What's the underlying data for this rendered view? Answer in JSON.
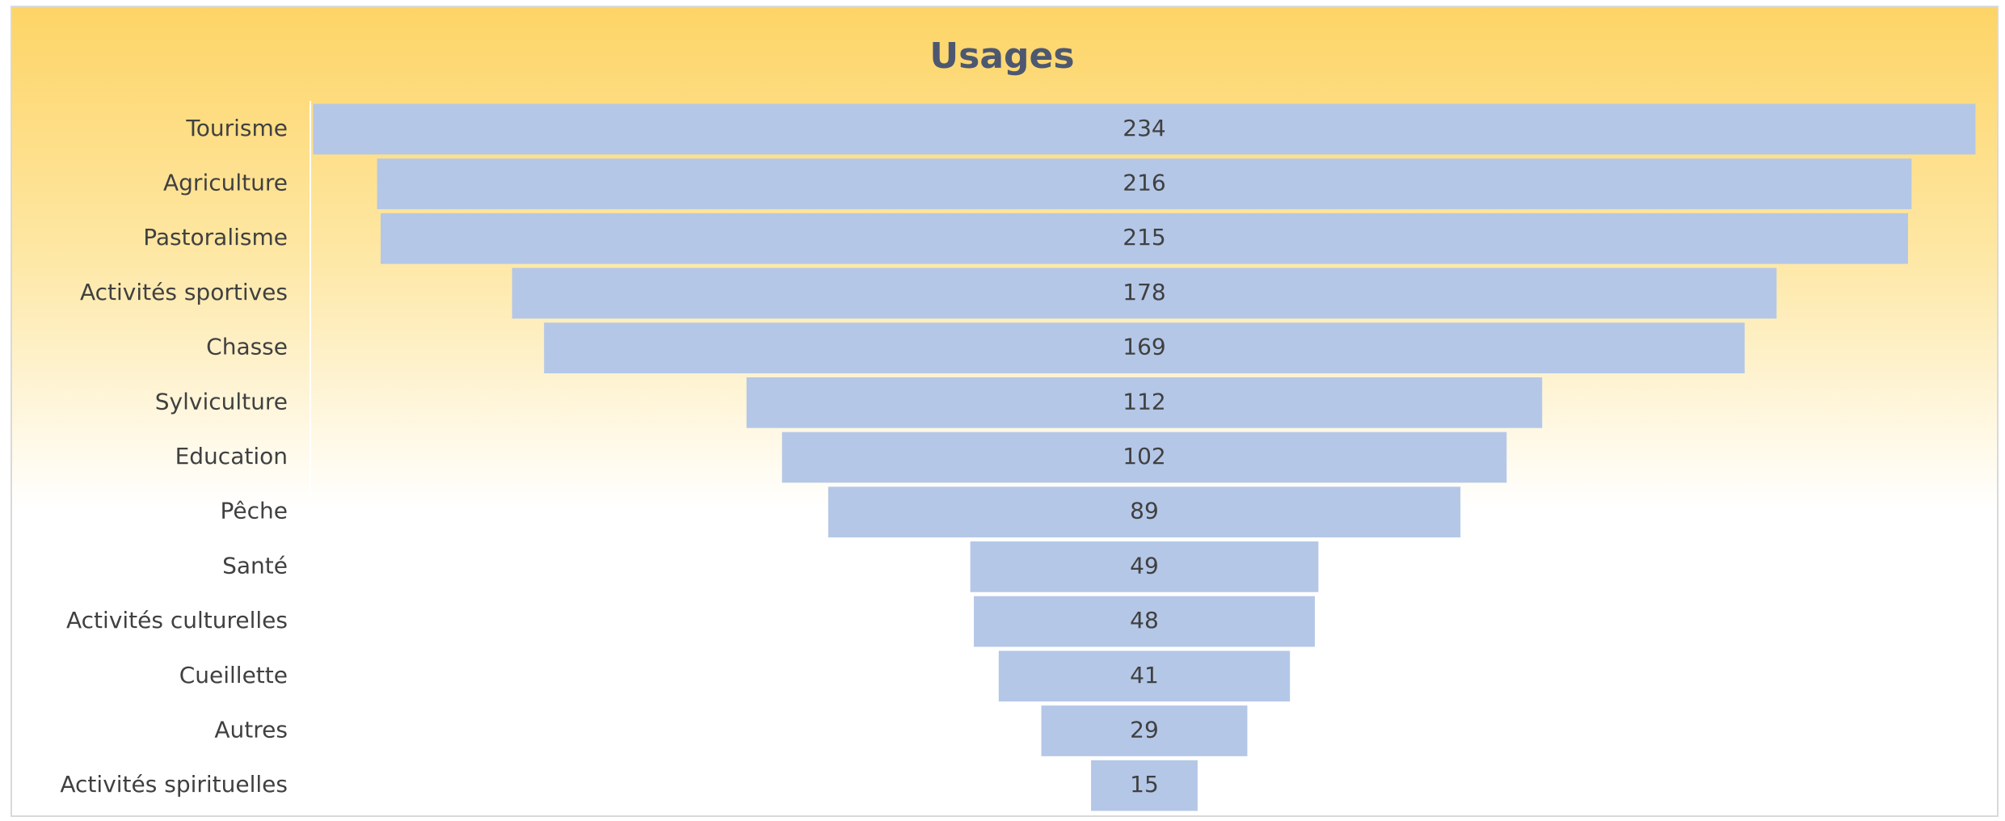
{
  "chart_data": {
    "type": "funnel",
    "title": "Usages",
    "categories": [
      "Tourisme",
      "Agriculture",
      "Pastoralisme",
      "Activités sportives",
      "Chasse",
      "Sylviculture",
      "Education",
      "Pêche",
      "Santé",
      "Activités culturelles",
      "Cueillette",
      "Autres",
      "Activités spirituelles"
    ],
    "values": [
      234,
      216,
      215,
      178,
      169,
      112,
      102,
      89,
      49,
      48,
      41,
      29,
      15
    ],
    "color": "#b4c7e7"
  }
}
